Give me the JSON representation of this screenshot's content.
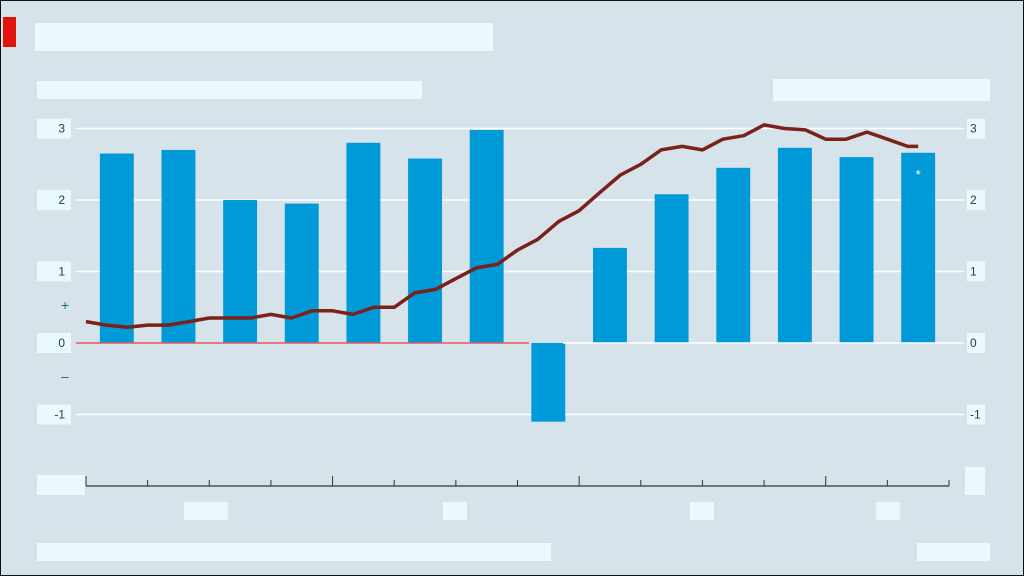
{
  "header": {
    "title": "",
    "subtitle": "",
    "legend_label": "",
    "source": "",
    "credit": ""
  },
  "colors": {
    "background": "#d6e3ea",
    "bars": "#009ad9",
    "line": "#7a2119",
    "zero_line": "#e35a5a",
    "grid": "#ffffff",
    "label_box": "#eafafc",
    "accent": "#e3120b"
  },
  "chart_data": {
    "type": "bar",
    "title": "",
    "left_axis": {
      "ylim": [
        -2,
        3
      ],
      "ticks": [
        -1,
        0,
        1,
        2,
        3
      ]
    },
    "right_axis": {
      "ylim": [
        -2,
        3
      ],
      "ticks": [
        -1,
        0,
        1,
        2,
        3
      ]
    },
    "x": {
      "range": [
        0,
        14
      ],
      "major_ticks": [
        0,
        4,
        8,
        12
      ],
      "minor_ticks": [
        0,
        1,
        2,
        3,
        4,
        5,
        6,
        7,
        8,
        9,
        10,
        11,
        12,
        13,
        14
      ]
    },
    "sign_markers": [
      "+",
      "–"
    ],
    "series": [
      {
        "kind": "bar",
        "axis": "left",
        "values": [
          2.65,
          2.7,
          2.0,
          1.95,
          2.8,
          2.58,
          2.98,
          -1.1,
          1.33,
          2.08,
          2.45,
          2.73,
          2.6,
          2.66
        ],
        "annotation": {
          "index": 13,
          "marker": "*"
        }
      },
      {
        "kind": "line",
        "axis": "right",
        "x": [
          0,
          0.33,
          0.67,
          1,
          1.33,
          1.67,
          2,
          2.33,
          2.67,
          3,
          3.33,
          3.67,
          4,
          4.33,
          4.67,
          5,
          5.33,
          5.67,
          6,
          6.33,
          6.67,
          7,
          7.33,
          7.67,
          8,
          8.33,
          8.67,
          9,
          9.33,
          9.67,
          10,
          10.33,
          10.67,
          11,
          11.33,
          11.67,
          12,
          12.33,
          12.67,
          13,
          13.33,
          13.5
        ],
        "values": [
          0.3,
          0.25,
          0.22,
          0.25,
          0.25,
          0.3,
          0.35,
          0.35,
          0.35,
          0.4,
          0.35,
          0.45,
          0.45,
          0.4,
          0.5,
          0.5,
          0.7,
          0.75,
          0.9,
          1.05,
          1.1,
          1.3,
          1.45,
          1.7,
          1.85,
          2.1,
          2.35,
          2.5,
          2.7,
          2.75,
          2.7,
          2.85,
          2.9,
          3.05,
          3.0,
          2.98,
          2.85,
          2.85,
          2.95,
          2.85,
          2.75,
          2.75
        ]
      }
    ],
    "grid": true,
    "zero_line": true
  }
}
